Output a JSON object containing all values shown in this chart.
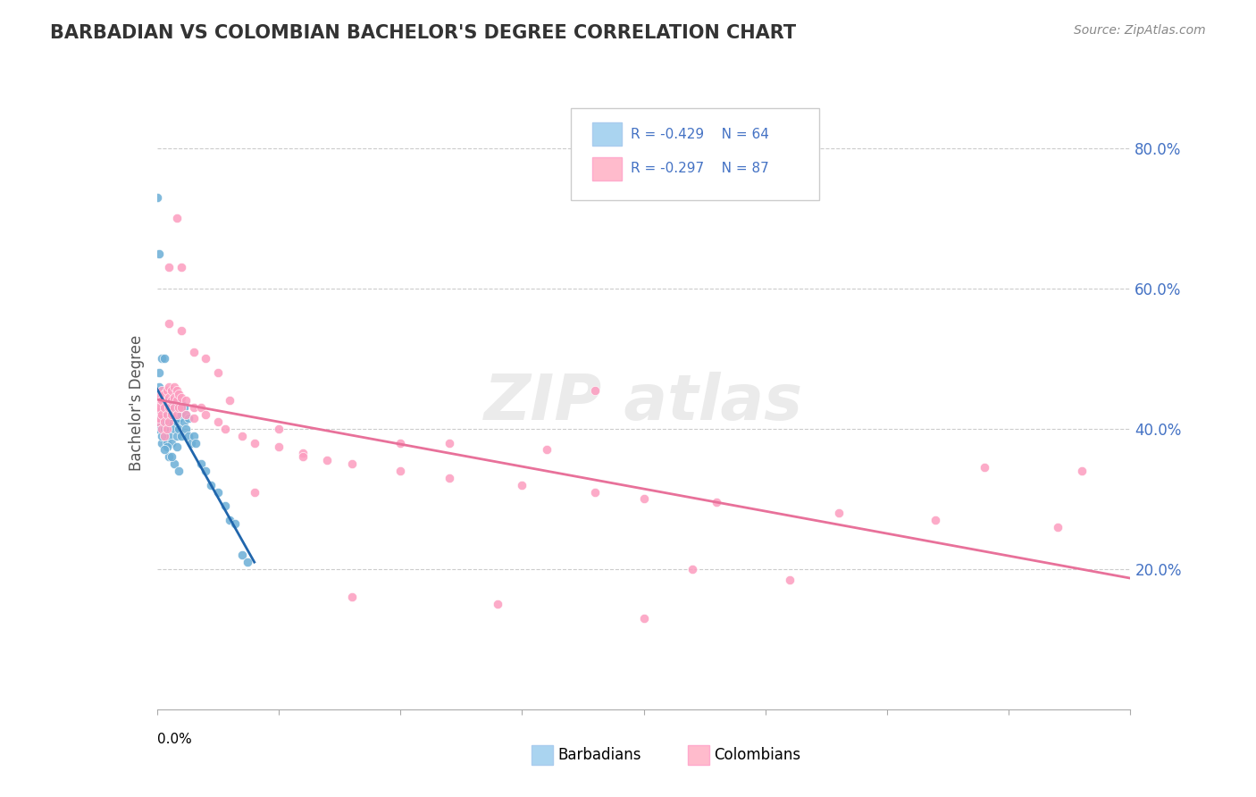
{
  "title": "BARBADIAN VS COLOMBIAN BACHELOR'S DEGREE CORRELATION CHART",
  "source_text": "Source: ZipAtlas.com",
  "ylabel": "Bachelor's Degree",
  "y_ticks": [
    "20.0%",
    "40.0%",
    "60.0%",
    "80.0%"
  ],
  "y_tick_vals": [
    0.2,
    0.4,
    0.6,
    0.8
  ],
  "xlim": [
    0.0,
    0.4
  ],
  "ylim": [
    0.0,
    0.875
  ],
  "barbadian_color": "#6baed6",
  "colombian_color": "#fc9cbf",
  "barbadian_line_color": "#2166ac",
  "colombian_line_color": "#e8719a",
  "barbadian_points": [
    [
      0.0,
      0.41
    ],
    [
      0.0,
      0.435
    ],
    [
      0.0,
      0.42
    ],
    [
      0.0,
      0.4
    ],
    [
      0.002,
      0.43
    ],
    [
      0.002,
      0.41
    ],
    [
      0.002,
      0.38
    ],
    [
      0.003,
      0.44
    ],
    [
      0.003,
      0.415
    ],
    [
      0.003,
      0.4
    ],
    [
      0.004,
      0.435
    ],
    [
      0.004,
      0.42
    ],
    [
      0.004,
      0.38
    ],
    [
      0.005,
      0.43
    ],
    [
      0.005,
      0.41
    ],
    [
      0.005,
      0.39
    ],
    [
      0.006,
      0.44
    ],
    [
      0.006,
      0.425
    ],
    [
      0.006,
      0.41
    ],
    [
      0.006,
      0.38
    ],
    [
      0.007,
      0.43
    ],
    [
      0.007,
      0.415
    ],
    [
      0.007,
      0.4
    ],
    [
      0.008,
      0.43
    ],
    [
      0.008,
      0.41
    ],
    [
      0.008,
      0.39
    ],
    [
      0.009,
      0.415
    ],
    [
      0.009,
      0.4
    ],
    [
      0.01,
      0.435
    ],
    [
      0.01,
      0.42
    ],
    [
      0.01,
      0.39
    ],
    [
      0.011,
      0.43
    ],
    [
      0.011,
      0.41
    ],
    [
      0.012,
      0.42
    ],
    [
      0.012,
      0.4
    ],
    [
      0.013,
      0.415
    ],
    [
      0.013,
      0.39
    ],
    [
      0.014,
      0.38
    ],
    [
      0.015,
      0.39
    ],
    [
      0.016,
      0.38
    ],
    [
      0.018,
      0.35
    ],
    [
      0.02,
      0.34
    ],
    [
      0.022,
      0.32
    ],
    [
      0.025,
      0.31
    ],
    [
      0.028,
      0.29
    ],
    [
      0.03,
      0.27
    ],
    [
      0.032,
      0.265
    ],
    [
      0.001,
      0.48
    ],
    [
      0.001,
      0.46
    ],
    [
      0.002,
      0.5
    ],
    [
      0.003,
      0.5
    ],
    [
      0.0,
      0.73
    ],
    [
      0.001,
      0.65
    ],
    [
      0.035,
      0.22
    ],
    [
      0.037,
      0.21
    ],
    [
      0.005,
      0.36
    ],
    [
      0.007,
      0.35
    ],
    [
      0.009,
      0.34
    ],
    [
      0.004,
      0.375
    ],
    [
      0.006,
      0.36
    ],
    [
      0.008,
      0.375
    ],
    [
      0.002,
      0.39
    ],
    [
      0.003,
      0.37
    ]
  ],
  "colombian_points": [
    [
      0.0,
      0.41
    ],
    [
      0.0,
      0.435
    ],
    [
      0.0,
      0.425
    ],
    [
      0.0,
      0.44
    ],
    [
      0.001,
      0.45
    ],
    [
      0.001,
      0.43
    ],
    [
      0.001,
      0.415
    ],
    [
      0.002,
      0.455
    ],
    [
      0.002,
      0.44
    ],
    [
      0.002,
      0.42
    ],
    [
      0.002,
      0.4
    ],
    [
      0.003,
      0.45
    ],
    [
      0.003,
      0.43
    ],
    [
      0.003,
      0.41
    ],
    [
      0.003,
      0.39
    ],
    [
      0.004,
      0.455
    ],
    [
      0.004,
      0.44
    ],
    [
      0.004,
      0.42
    ],
    [
      0.004,
      0.4
    ],
    [
      0.005,
      0.46
    ],
    [
      0.005,
      0.445
    ],
    [
      0.005,
      0.43
    ],
    [
      0.005,
      0.41
    ],
    [
      0.006,
      0.455
    ],
    [
      0.006,
      0.44
    ],
    [
      0.006,
      0.42
    ],
    [
      0.007,
      0.46
    ],
    [
      0.007,
      0.445
    ],
    [
      0.007,
      0.43
    ],
    [
      0.008,
      0.455
    ],
    [
      0.008,
      0.44
    ],
    [
      0.008,
      0.42
    ],
    [
      0.009,
      0.45
    ],
    [
      0.009,
      0.43
    ],
    [
      0.01,
      0.445
    ],
    [
      0.01,
      0.43
    ],
    [
      0.012,
      0.44
    ],
    [
      0.012,
      0.42
    ],
    [
      0.015,
      0.43
    ],
    [
      0.015,
      0.415
    ],
    [
      0.018,
      0.43
    ],
    [
      0.02,
      0.42
    ],
    [
      0.025,
      0.41
    ],
    [
      0.028,
      0.4
    ],
    [
      0.035,
      0.39
    ],
    [
      0.04,
      0.38
    ],
    [
      0.05,
      0.375
    ],
    [
      0.06,
      0.365
    ],
    [
      0.07,
      0.355
    ],
    [
      0.08,
      0.35
    ],
    [
      0.1,
      0.34
    ],
    [
      0.12,
      0.33
    ],
    [
      0.15,
      0.32
    ],
    [
      0.18,
      0.31
    ],
    [
      0.2,
      0.3
    ],
    [
      0.23,
      0.295
    ],
    [
      0.28,
      0.28
    ],
    [
      0.32,
      0.27
    ],
    [
      0.37,
      0.26
    ],
    [
      0.005,
      0.63
    ],
    [
      0.01,
      0.63
    ],
    [
      0.005,
      0.55
    ],
    [
      0.01,
      0.54
    ],
    [
      0.015,
      0.51
    ],
    [
      0.02,
      0.5
    ],
    [
      0.025,
      0.48
    ],
    [
      0.008,
      0.7
    ],
    [
      0.18,
      0.455
    ],
    [
      0.22,
      0.2
    ],
    [
      0.14,
      0.15
    ],
    [
      0.34,
      0.345
    ],
    [
      0.26,
      0.185
    ],
    [
      0.38,
      0.34
    ],
    [
      0.12,
      0.38
    ],
    [
      0.08,
      0.16
    ],
    [
      0.16,
      0.37
    ],
    [
      0.06,
      0.36
    ],
    [
      0.04,
      0.31
    ],
    [
      0.1,
      0.38
    ],
    [
      0.05,
      0.4
    ],
    [
      0.03,
      0.44
    ],
    [
      0.2,
      0.13
    ]
  ],
  "barbadian_R": -0.429,
  "barbadian_N": 64,
  "colombian_R": -0.297,
  "colombian_N": 87
}
